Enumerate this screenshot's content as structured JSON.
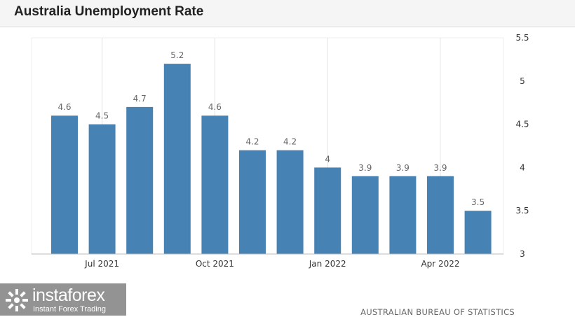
{
  "header": {
    "title": "Australia Unemployment Rate"
  },
  "chart_data": {
    "type": "bar",
    "title": "Australia Unemployment Rate",
    "xlabel": "",
    "ylabel": "",
    "categories": [
      "Jun 2021",
      "Jul 2021",
      "Aug 2021",
      "Sep 2021",
      "Oct 2021",
      "Nov 2021",
      "Dec 2021",
      "Jan 2022",
      "Feb 2022",
      "Mar 2022",
      "Apr 2022",
      "May 2022"
    ],
    "values": [
      4.6,
      4.5,
      4.7,
      5.2,
      4.6,
      4.2,
      4.2,
      4.0,
      3.9,
      3.9,
      3.9,
      3.5
    ],
    "data_labels": [
      "4.6",
      "4.5",
      "4.7",
      "5.2",
      "4.6",
      "4.2",
      "4.2",
      "4",
      "3.9",
      "3.9",
      "3.9",
      "3.5"
    ],
    "ylim": [
      3,
      5.5
    ],
    "y_ticks": [
      3,
      3.5,
      4,
      4.5,
      5,
      5.5
    ],
    "y_tick_labels": [
      "3",
      "3.5",
      "4",
      "4.5",
      "5",
      "5.5"
    ],
    "x_tick_labels": [
      {
        "category": "Jul 2021",
        "label": "Jul 2021"
      },
      {
        "category": "Oct 2021",
        "label": "Oct 2021"
      },
      {
        "category": "Jan 2022",
        "label": "Jan 2022"
      },
      {
        "category": "Apr 2022",
        "label": "Apr 2022"
      }
    ],
    "y_axis_side": "right",
    "grid": "vertical",
    "bar_color": "#4682b4",
    "grid_color": "#e4e4e4",
    "label_color": "#666666",
    "source": "AUSTRALIAN BUREAU OF STATISTICS"
  },
  "branding": {
    "name": "instaforex",
    "tagline": "Instant Forex Trading"
  }
}
